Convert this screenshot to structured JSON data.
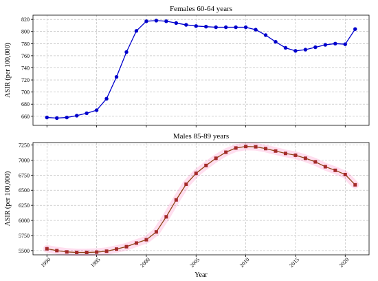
{
  "chart_data": [
    {
      "type": "line",
      "title": "Females 60-64 years",
      "xlabel": "",
      "ylabel": "ASIR (per 100,000)",
      "xlim": [
        1988.6,
        2022.4
      ],
      "ylim": [
        645,
        827
      ],
      "x_ticks": [
        1990,
        1995,
        2000,
        2005,
        2010,
        2015,
        2020
      ],
      "y_ticks": [
        660,
        680,
        700,
        720,
        740,
        760,
        780,
        800,
        820
      ],
      "show_x_tick_labels": false,
      "grid": true,
      "marker": "circle",
      "color": "#0000cc",
      "series": [
        {
          "x": [
            1990,
            1991,
            1992,
            1993,
            1994,
            1995,
            1996,
            1997,
            1998,
            1999,
            2000,
            2001,
            2002,
            2003,
            2004,
            2005,
            2006,
            2007,
            2008,
            2009,
            2010,
            2011,
            2012,
            2013,
            2014,
            2015,
            2016,
            2017,
            2018,
            2019,
            2020,
            2021
          ],
          "values": [
            658,
            657,
            658,
            661,
            665,
            670,
            689,
            725,
            766,
            801,
            817,
            818,
            817,
            814,
            811,
            809,
            808,
            807,
            807,
            807,
            807,
            803,
            794,
            783,
            773,
            768,
            770,
            774,
            778,
            780,
            779,
            804
          ]
        }
      ]
    },
    {
      "type": "line",
      "title": "Males 85-89 years",
      "xlabel": "Year",
      "ylabel": "ASIR (per 100,000)",
      "xlim": [
        1988.6,
        2022.4
      ],
      "ylim": [
        5430,
        7290
      ],
      "x_ticks": [
        1990,
        1995,
        2000,
        2005,
        2010,
        2015,
        2020
      ],
      "y_ticks": [
        5500,
        5750,
        6000,
        6250,
        6500,
        6750,
        7000,
        7250
      ],
      "show_x_tick_labels": true,
      "grid": true,
      "marker": "square",
      "color": "#8b4513",
      "marker_color": "#a52a2a",
      "band_color": "#ff69b4",
      "series": [
        {
          "x": [
            1990,
            1991,
            1992,
            1993,
            1994,
            1995,
            1996,
            1997,
            1998,
            1999,
            2000,
            2001,
            2002,
            2003,
            2004,
            2005,
            2006,
            2007,
            2008,
            2009,
            2010,
            2011,
            2012,
            2013,
            2014,
            2015,
            2016,
            2017,
            2018,
            2019,
            2020,
            2021
          ],
          "values": [
            5530,
            5500,
            5478,
            5470,
            5470,
            5475,
            5490,
            5525,
            5565,
            5625,
            5680,
            5810,
            6060,
            6340,
            6600,
            6780,
            6910,
            7030,
            7130,
            7200,
            7225,
            7220,
            7190,
            7150,
            7110,
            7080,
            7030,
            6970,
            6890,
            6830,
            6760,
            6590
          ]
        }
      ]
    }
  ]
}
